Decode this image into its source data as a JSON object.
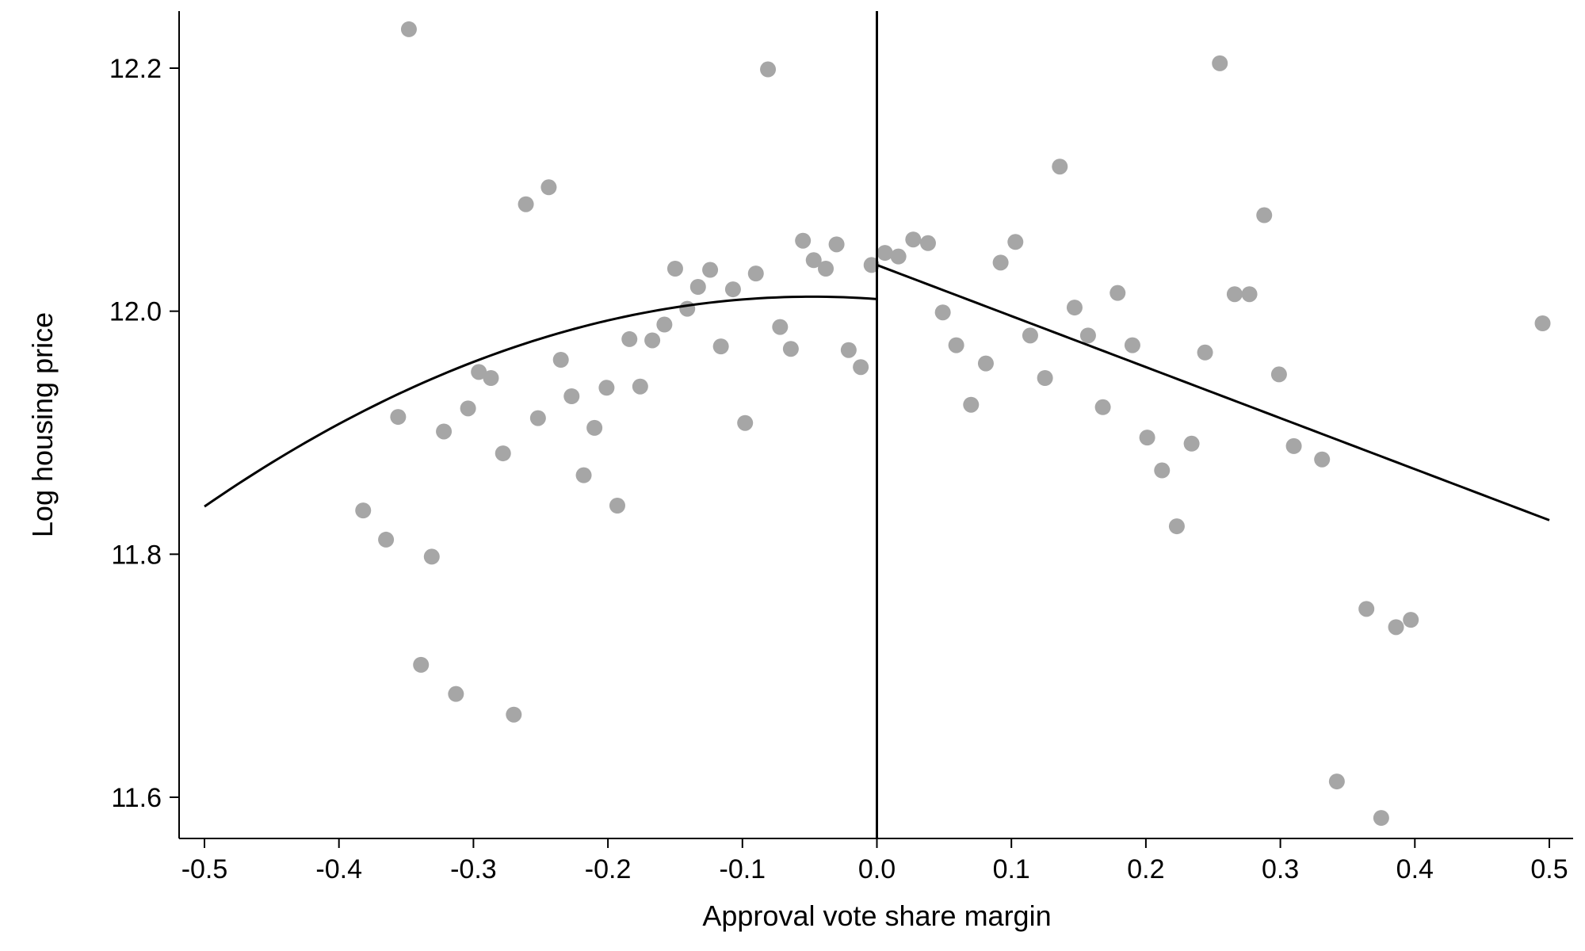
{
  "chart_data": {
    "type": "scatter",
    "title": "",
    "xlabel": "Approval vote share margin",
    "ylabel": "Log housing price",
    "xlim": [
      -0.52,
      0.52
    ],
    "ylim": [
      11.57,
      12.25
    ],
    "x_ticks": [
      -0.5,
      -0.4,
      -0.3,
      -0.2,
      -0.1,
      0.0,
      0.1,
      0.2,
      0.3,
      0.4,
      0.5
    ],
    "x_tick_labels": [
      "-0.5",
      "-0.4",
      "-0.3",
      "-0.2",
      "-0.1",
      "0.0",
      "0.1",
      "0.2",
      "0.3",
      "0.4",
      "0.5"
    ],
    "y_ticks": [
      11.6,
      11.8,
      12.0,
      12.2
    ],
    "y_tick_labels": [
      "11.6",
      "11.8",
      "12.0",
      "12.2"
    ],
    "grid": false,
    "legend": "none",
    "cutoff": 0.0,
    "point_color": "#a6a6a6",
    "line_color": "#000000",
    "points": [
      [
        -0.382,
        11.836
      ],
      [
        -0.365,
        11.812
      ],
      [
        -0.356,
        11.913
      ],
      [
        -0.348,
        12.232
      ],
      [
        -0.339,
        11.709
      ],
      [
        -0.331,
        11.798
      ],
      [
        -0.322,
        11.901
      ],
      [
        -0.313,
        11.685
      ],
      [
        -0.304,
        11.92
      ],
      [
        -0.296,
        11.95
      ],
      [
        -0.287,
        11.945
      ],
      [
        -0.278,
        11.883
      ],
      [
        -0.27,
        11.668
      ],
      [
        -0.261,
        12.088
      ],
      [
        -0.252,
        11.912
      ],
      [
        -0.244,
        12.102
      ],
      [
        -0.235,
        11.96
      ],
      [
        -0.227,
        11.93
      ],
      [
        -0.218,
        11.865
      ],
      [
        -0.21,
        11.904
      ],
      [
        -0.201,
        11.937
      ],
      [
        -0.193,
        11.84
      ],
      [
        -0.184,
        11.977
      ],
      [
        -0.176,
        11.938
      ],
      [
        -0.167,
        11.976
      ],
      [
        -0.158,
        11.989
      ],
      [
        -0.15,
        12.035
      ],
      [
        -0.141,
        12.002
      ],
      [
        -0.133,
        12.02
      ],
      [
        -0.124,
        12.034
      ],
      [
        -0.116,
        11.971
      ],
      [
        -0.107,
        12.018
      ],
      [
        -0.098,
        11.908
      ],
      [
        -0.09,
        12.031
      ],
      [
        -0.081,
        12.199
      ],
      [
        -0.072,
        11.987
      ],
      [
        -0.064,
        11.969
      ],
      [
        -0.055,
        12.058
      ],
      [
        -0.047,
        12.042
      ],
      [
        -0.038,
        12.035
      ],
      [
        -0.03,
        12.055
      ],
      [
        -0.021,
        11.968
      ],
      [
        -0.012,
        11.954
      ],
      [
        -0.004,
        12.038
      ],
      [
        0.006,
        12.048
      ],
      [
        0.016,
        12.045
      ],
      [
        0.027,
        12.059
      ],
      [
        0.038,
        12.056
      ],
      [
        0.049,
        11.999
      ],
      [
        0.059,
        11.972
      ],
      [
        0.07,
        11.923
      ],
      [
        0.081,
        11.957
      ],
      [
        0.092,
        12.04
      ],
      [
        0.103,
        12.057
      ],
      [
        0.114,
        11.98
      ],
      [
        0.125,
        11.945
      ],
      [
        0.136,
        12.119
      ],
      [
        0.147,
        12.003
      ],
      [
        0.157,
        11.98
      ],
      [
        0.168,
        11.921
      ],
      [
        0.179,
        12.015
      ],
      [
        0.19,
        11.972
      ],
      [
        0.201,
        11.896
      ],
      [
        0.212,
        11.869
      ],
      [
        0.223,
        11.823
      ],
      [
        0.234,
        11.891
      ],
      [
        0.244,
        11.966
      ],
      [
        0.255,
        12.204
      ],
      [
        0.266,
        12.014
      ],
      [
        0.277,
        12.014
      ],
      [
        0.288,
        12.079
      ],
      [
        0.299,
        11.948
      ],
      [
        0.31,
        11.889
      ],
      [
        0.331,
        11.878
      ],
      [
        0.342,
        11.613
      ],
      [
        0.364,
        11.755
      ],
      [
        0.375,
        11.583
      ],
      [
        0.386,
        11.74
      ],
      [
        0.397,
        11.746
      ],
      [
        0.495,
        11.99
      ]
    ],
    "fit_left": {
      "type": "quadratic",
      "x_range": [
        -0.5,
        0.0
      ],
      "coefficients": [
        12.01,
        -0.0809,
        -0.8448
      ]
    },
    "fit_right": {
      "type": "linear",
      "x_range": [
        0.0,
        0.5
      ],
      "coefficients": [
        12.038,
        -0.42
      ]
    }
  }
}
